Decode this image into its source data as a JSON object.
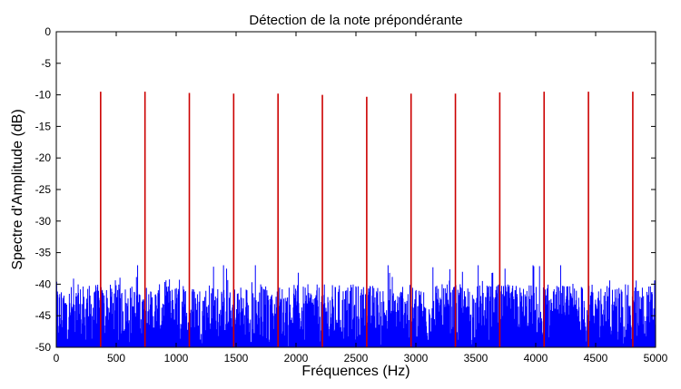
{
  "chart_data": {
    "type": "line",
    "title": "Détection de la note prépondérante",
    "xlabel": "Fréquences (Hz)",
    "ylabel": "Spectre d'Amplitude (dB)",
    "xlim": [
      0,
      5000
    ],
    "ylim": [
      -50,
      0
    ],
    "xticks": [
      "0",
      "500",
      "1000",
      "1500",
      "2000",
      "2500",
      "3000",
      "3500",
      "4000",
      "4500",
      "5000"
    ],
    "yticks": [
      "0",
      "-5",
      "-10",
      "-15",
      "-20",
      "-25",
      "-30",
      "-35",
      "-40",
      "-45",
      "-50"
    ],
    "grid": false,
    "series": [
      {
        "color": "#0000ff",
        "description": "noise floor spectrum",
        "range_db": [
          -50,
          -37
        ],
        "typical_db": -45
      },
      {
        "color": "#cc0000",
        "x": [
          370,
          740,
          1110,
          1480,
          1850,
          2220,
          2590,
          2960,
          3330,
          3700,
          4070,
          4440,
          4810
        ],
        "y": [
          -9.5,
          -9.5,
          -9.7,
          -9.8,
          -9.8,
          -10,
          -10.3,
          -9.8,
          -9.8,
          -9.6,
          -9.5,
          -9.5,
          -9.5
        ]
      }
    ]
  }
}
